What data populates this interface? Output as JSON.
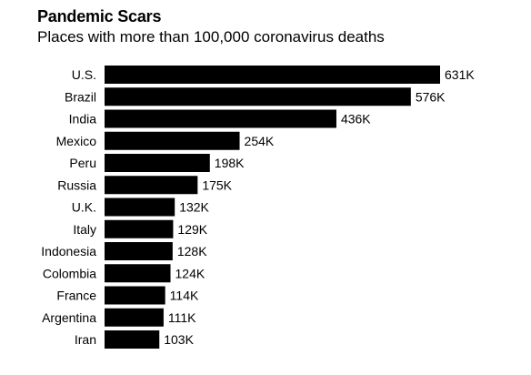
{
  "chart_data": {
    "type": "bar",
    "orientation": "horizontal",
    "title": "Pandemic Scars",
    "subtitle": "Places with more than 100,000 coronavirus deaths",
    "categories": [
      "U.S.",
      "Brazil",
      "India",
      "Mexico",
      "Peru",
      "Russia",
      "U.K.",
      "Italy",
      "Indonesia",
      "Colombia",
      "France",
      "Argentina",
      "Iran"
    ],
    "values": [
      631,
      576,
      436,
      254,
      198,
      175,
      132,
      129,
      128,
      124,
      114,
      111,
      103
    ],
    "value_labels": [
      "631K",
      "576K",
      "436K",
      "254K",
      "198K",
      "175K",
      "132K",
      "129K",
      "128K",
      "124K",
      "114K",
      "111K",
      "103K"
    ],
    "bar_color": "#000000",
    "xlim": [
      0,
      631
    ],
    "grid": false,
    "legend": "none"
  }
}
